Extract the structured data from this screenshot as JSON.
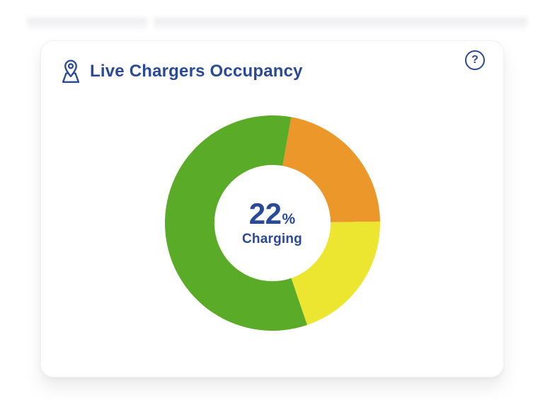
{
  "card": {
    "title": "Live Chargers Occupancy",
    "help_glyph": "?"
  },
  "icons": {
    "title_icon": "map-pin-on-base",
    "help_icon": "question-mark-circle"
  },
  "colors": {
    "accent_blue": "#2a4a97",
    "green": "#5aab28",
    "orange": "#ec9729",
    "yellow": "#ede630",
    "card_background": "#ffffff"
  },
  "chart_data": {
    "type": "pie",
    "donut": true,
    "title": "Live Chargers Occupancy",
    "start_angle_deg": 10,
    "direction": "clockwise",
    "inner_radius_ratio": 0.54,
    "legend": "none",
    "segments": [
      {
        "name": "orange",
        "value": 22,
        "color": "#ec9729"
      },
      {
        "name": "yellow",
        "value": 20,
        "color": "#ede630"
      },
      {
        "name": "green",
        "value": 58,
        "color": "#5aab28"
      }
    ],
    "center_label": {
      "value": "22",
      "unit": "%",
      "text": "Charging"
    }
  }
}
